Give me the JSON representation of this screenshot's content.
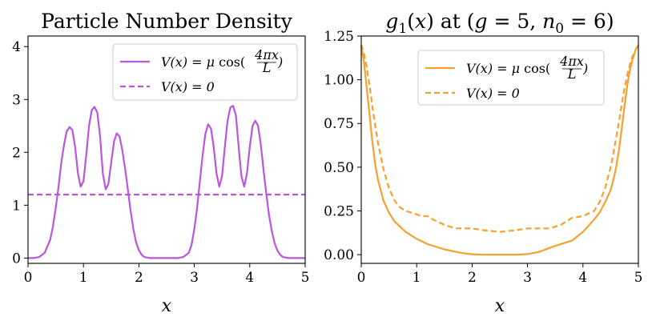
{
  "chart_data": [
    {
      "type": "line",
      "title": "Particle Number Density",
      "xlabel": "x",
      "ylabel": "",
      "xlim": [
        0,
        5
      ],
      "ylim": [
        -0.1,
        4.2
      ],
      "xticks": [
        0,
        1,
        2,
        3,
        4,
        5
      ],
      "xtick_labels": [
        "0",
        "1",
        "2",
        "3",
        "4",
        "5"
      ],
      "yticks": [
        0,
        1,
        2,
        3,
        4
      ],
      "ytick_labels": [
        "0",
        "1",
        "2",
        "3",
        "4"
      ],
      "legend_position": "top-right",
      "series": [
        {
          "name": "V(x) = μ cos(4πx/L)",
          "color": "#bb55dd",
          "style": "solid",
          "x": [
            0,
            0.1,
            0.2,
            0.3,
            0.4,
            0.45,
            0.5,
            0.55,
            0.6,
            0.65,
            0.7,
            0.75,
            0.8,
            0.85,
            0.9,
            0.95,
            1.0,
            1.05,
            1.1,
            1.15,
            1.2,
            1.25,
            1.3,
            1.35,
            1.4,
            1.45,
            1.5,
            1.55,
            1.6,
            1.65,
            1.7,
            1.75,
            1.8,
            1.85,
            1.9,
            1.95,
            2.0,
            2.05,
            2.1,
            2.2,
            2.3,
            2.5,
            2.7,
            2.8,
            2.9,
            2.95,
            3.0,
            3.05,
            3.1,
            3.15,
            3.2,
            3.25,
            3.3,
            3.35,
            3.4,
            3.45,
            3.5,
            3.55,
            3.6,
            3.65,
            3.7,
            3.75,
            3.8,
            3.85,
            3.9,
            3.95,
            4.0,
            4.05,
            4.1,
            4.15,
            4.2,
            4.25,
            4.3,
            4.35,
            4.4,
            4.45,
            4.5,
            4.55,
            4.6,
            4.7,
            4.8,
            4.9,
            5.0
          ],
          "y": [
            0.0,
            0.0,
            0.02,
            0.1,
            0.35,
            0.6,
            0.95,
            1.35,
            1.8,
            2.15,
            2.4,
            2.48,
            2.42,
            2.1,
            1.6,
            1.35,
            1.45,
            1.95,
            2.5,
            2.8,
            2.86,
            2.75,
            2.3,
            1.6,
            1.3,
            1.4,
            1.8,
            2.2,
            2.36,
            2.3,
            2.05,
            1.7,
            1.3,
            0.9,
            0.55,
            0.3,
            0.15,
            0.06,
            0.02,
            0.0,
            0.0,
            0.0,
            0.0,
            0.02,
            0.1,
            0.25,
            0.55,
            0.95,
            1.45,
            1.95,
            2.35,
            2.53,
            2.45,
            2.1,
            1.6,
            1.35,
            1.55,
            2.1,
            2.6,
            2.85,
            2.88,
            2.7,
            2.1,
            1.55,
            1.35,
            1.6,
            2.1,
            2.5,
            2.6,
            2.5,
            2.15,
            1.65,
            1.2,
            0.8,
            0.5,
            0.28,
            0.14,
            0.06,
            0.02,
            0.0,
            0.0,
            0.0,
            0.0
          ]
        },
        {
          "name": "V(x) = 0",
          "color": "#bb55dd",
          "style": "dashed",
          "x": [
            0,
            5
          ],
          "y": [
            1.2,
            1.2
          ]
        }
      ]
    },
    {
      "type": "line",
      "title": "g1(x) at (g = 5, n0 = 6)",
      "xlabel": "x",
      "ylabel": "",
      "xlim": [
        0,
        5
      ],
      "ylim": [
        -0.05,
        1.25
      ],
      "xticks": [
        0,
        1,
        2,
        3,
        4,
        5
      ],
      "xtick_labels": [
        "0",
        "1",
        "2",
        "3",
        "4",
        "5"
      ],
      "yticks": [
        0,
        0.25,
        0.5,
        0.75,
        1.0,
        1.25
      ],
      "ytick_labels": [
        "0.00",
        "0.25",
        "0.50",
        "0.75",
        "1.00",
        "1.25"
      ],
      "legend_position": "top-center",
      "series": [
        {
          "name": "V(x) = μ cos(4πx/L)",
          "color": "#f5a030",
          "style": "solid",
          "x": [
            0,
            0.05,
            0.1,
            0.15,
            0.2,
            0.25,
            0.3,
            0.4,
            0.5,
            0.6,
            0.7,
            0.8,
            1.0,
            1.2,
            1.5,
            1.8,
            2.0,
            2.2,
            2.5,
            2.8,
            3.0,
            3.2,
            3.5,
            3.8,
            4.0,
            4.2,
            4.3,
            4.4,
            4.5,
            4.55,
            4.6,
            4.65,
            4.7,
            4.75,
            4.8,
            4.85,
            4.9,
            4.95,
            5.0
          ],
          "y": [
            1.19,
            1.1,
            0.95,
            0.8,
            0.65,
            0.52,
            0.43,
            0.31,
            0.24,
            0.19,
            0.16,
            0.13,
            0.09,
            0.06,
            0.03,
            0.01,
            0.002,
            0.0,
            0.0,
            0.0,
            0.003,
            0.015,
            0.05,
            0.08,
            0.13,
            0.2,
            0.24,
            0.3,
            0.37,
            0.43,
            0.5,
            0.6,
            0.72,
            0.85,
            0.97,
            1.06,
            1.12,
            1.17,
            1.2
          ]
        },
        {
          "name": "V(x) = 0",
          "color": "#f5a030",
          "style": "dashed",
          "x": [
            0,
            0.05,
            0.1,
            0.15,
            0.2,
            0.25,
            0.3,
            0.4,
            0.5,
            0.6,
            0.7,
            0.8,
            0.9,
            1.0,
            1.1,
            1.2,
            1.3,
            1.5,
            1.7,
            1.9,
            2.0,
            2.2,
            2.5,
            2.8,
            3.0,
            3.2,
            3.4,
            3.6,
            3.8,
            4.0,
            4.2,
            4.3,
            4.4,
            4.5,
            4.55,
            4.6,
            4.65,
            4.7,
            4.75,
            4.8,
            4.85,
            4.9,
            4.95,
            5.0
          ],
          "y": [
            1.2,
            1.15,
            1.07,
            0.97,
            0.85,
            0.74,
            0.64,
            0.49,
            0.38,
            0.31,
            0.27,
            0.25,
            0.24,
            0.23,
            0.22,
            0.22,
            0.2,
            0.17,
            0.15,
            0.15,
            0.15,
            0.14,
            0.13,
            0.14,
            0.15,
            0.15,
            0.15,
            0.17,
            0.21,
            0.22,
            0.25,
            0.3,
            0.38,
            0.5,
            0.58,
            0.67,
            0.76,
            0.86,
            0.95,
            1.03,
            1.09,
            1.14,
            1.17,
            1.2
          ]
        }
      ]
    }
  ]
}
